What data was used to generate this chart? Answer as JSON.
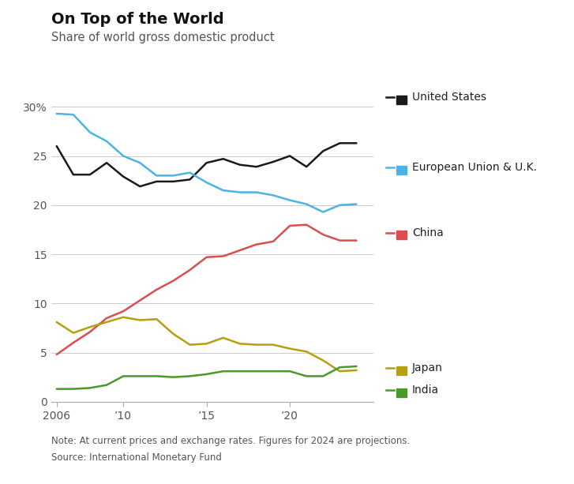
{
  "title": "On Top of the World",
  "subtitle": "Share of world gross domestic product",
  "note1": "Note: At current prices and exchange rates. Figures for 2024 are projections.",
  "note2": "Source: International Monetary Fund",
  "years": [
    2006,
    2007,
    2008,
    2009,
    2010,
    2011,
    2012,
    2013,
    2014,
    2015,
    2016,
    2017,
    2018,
    2019,
    2020,
    2021,
    2022,
    2023,
    2024
  ],
  "series": {
    "United States": {
      "color": "#1a1a1a",
      "values": [
        26.0,
        23.1,
        23.1,
        24.3,
        22.9,
        21.9,
        22.4,
        22.4,
        22.6,
        24.3,
        24.7,
        24.1,
        23.9,
        24.4,
        25.0,
        23.9,
        25.5,
        26.3,
        26.3
      ]
    },
    "European Union & U.K.": {
      "color": "#4db3e6",
      "values": [
        29.3,
        29.2,
        27.4,
        26.5,
        25.0,
        24.3,
        23.0,
        23.0,
        23.3,
        22.3,
        21.5,
        21.3,
        21.3,
        21.0,
        20.5,
        20.1,
        19.3,
        20.0,
        20.1
      ]
    },
    "China": {
      "color": "#d94f4f",
      "values": [
        4.8,
        6.0,
        7.1,
        8.5,
        9.2,
        10.3,
        11.4,
        12.3,
        13.4,
        14.7,
        14.8,
        15.4,
        16.0,
        16.3,
        17.9,
        18.0,
        17.0,
        16.4,
        16.4
      ]
    },
    "Japan": {
      "color": "#b5a010",
      "values": [
        8.1,
        7.0,
        7.6,
        8.1,
        8.6,
        8.3,
        8.4,
        6.9,
        5.8,
        5.9,
        6.5,
        5.9,
        5.8,
        5.8,
        5.4,
        5.1,
        4.2,
        3.1,
        3.2
      ]
    },
    "India": {
      "color": "#4a9a28",
      "values": [
        1.3,
        1.3,
        1.4,
        1.7,
        2.6,
        2.6,
        2.6,
        2.5,
        2.6,
        2.8,
        3.1,
        3.1,
        3.1,
        3.1,
        3.1,
        2.6,
        2.6,
        3.5,
        3.6
      ]
    }
  },
  "ylim": [
    0,
    32
  ],
  "yticks": [
    0,
    5,
    10,
    15,
    20,
    25,
    30
  ],
  "ytick_labels": [
    "0",
    "5",
    "10",
    "15",
    "20",
    "25",
    "30%"
  ],
  "xlim": [
    2005.7,
    2025.0
  ],
  "xticks": [
    2006,
    2010,
    2015,
    2020
  ],
  "xtick_labels": [
    "2006",
    "’10",
    "’15",
    "’20"
  ],
  "bg_color": "#ffffff",
  "grid_color": "#cccccc",
  "legend_order": [
    "United States",
    "European Union & U.K.",
    "China",
    "Japan",
    "India"
  ]
}
